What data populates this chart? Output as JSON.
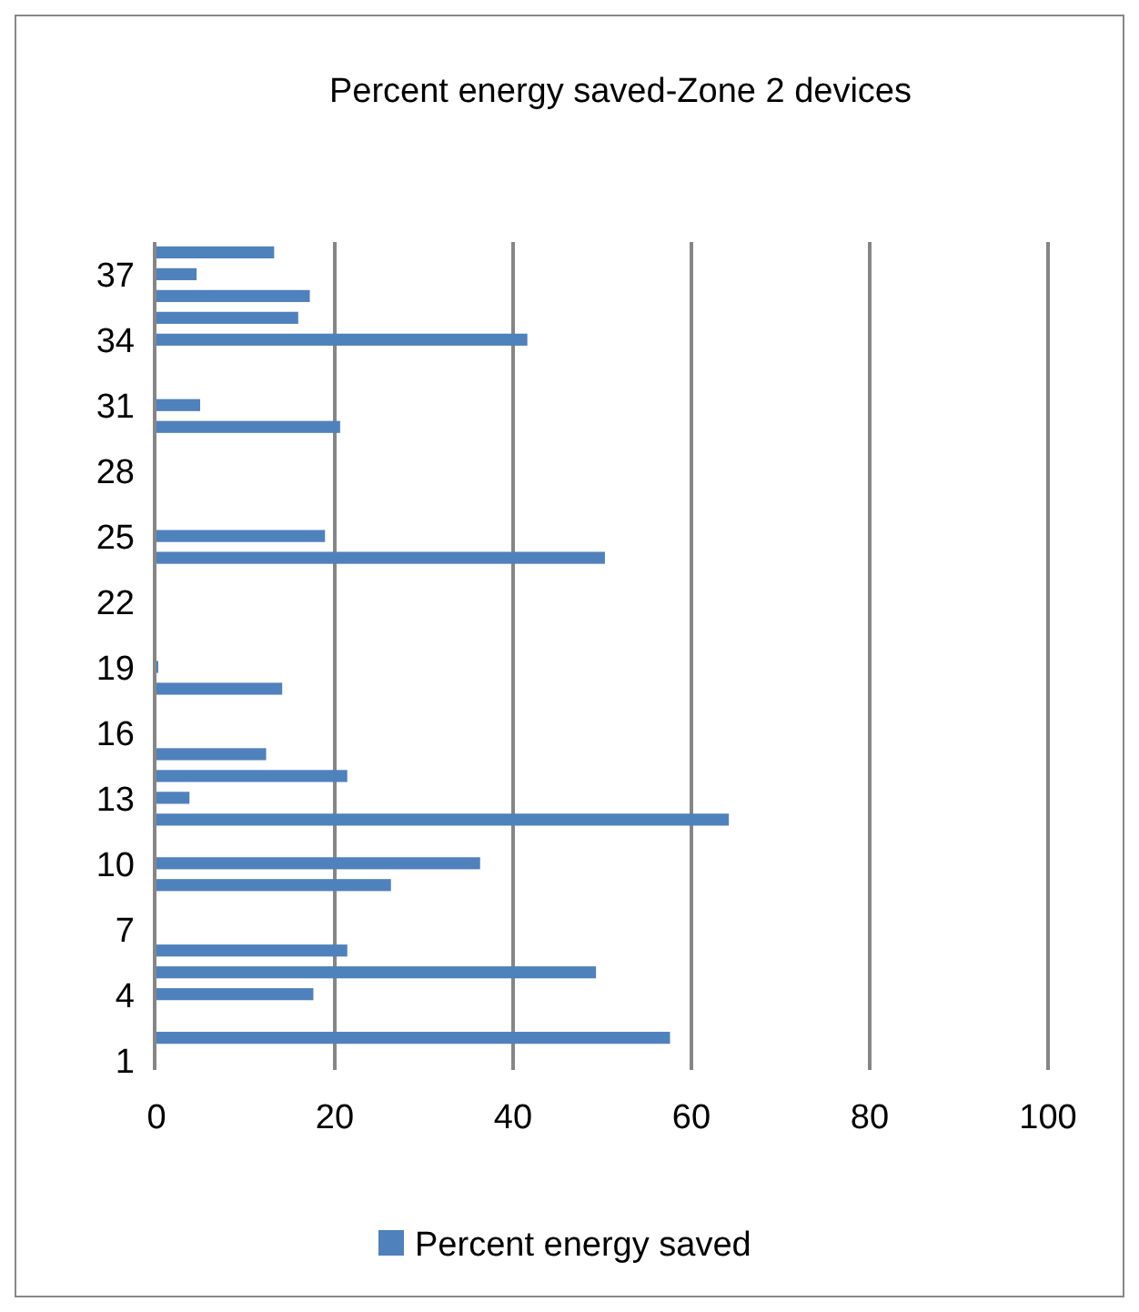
{
  "chart_data": {
    "type": "bar",
    "orientation": "horizontal",
    "title": "Percent energy saved-Zone 2 devices",
    "categories": [
      null,
      "37",
      null,
      null,
      "34",
      null,
      null,
      "31",
      null,
      null,
      "28",
      null,
      null,
      "25",
      null,
      null,
      "22",
      null,
      null,
      "19",
      null,
      null,
      "16",
      null,
      null,
      "13",
      null,
      null,
      "10",
      null,
      null,
      "7",
      null,
      null,
      "4",
      null,
      null,
      "1"
    ],
    "series": [
      {
        "name": "Percent energy saved",
        "color": "#4f81bd",
        "values": [
          13.2,
          4.5,
          17.2,
          15.9,
          41.6,
          null,
          null,
          4.9,
          20.6,
          null,
          null,
          null,
          null,
          18.9,
          50.3,
          null,
          null,
          null,
          null,
          0.2,
          14.1,
          null,
          null,
          12.3,
          21.4,
          3.7,
          64.2,
          null,
          36.3,
          26.3,
          null,
          null,
          21.4,
          49.3,
          17.6,
          null,
          57.6,
          null
        ]
      }
    ],
    "xlim": [
      0,
      100
    ],
    "xticks": [
      0,
      20,
      40,
      60,
      80,
      100
    ],
    "grid": "x",
    "legend": "bottom"
  }
}
